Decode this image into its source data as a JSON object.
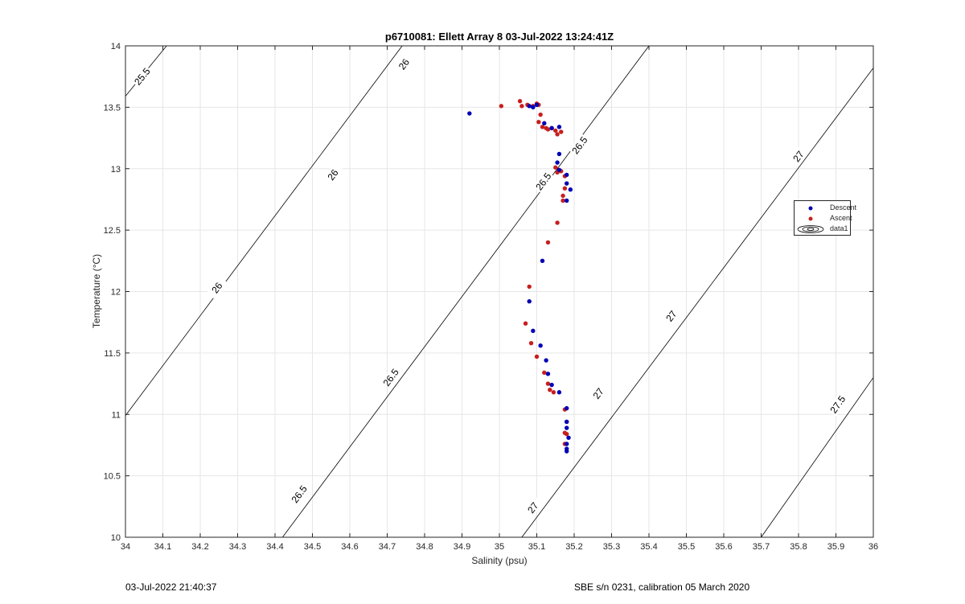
{
  "chart_data": {
    "type": "scatter",
    "title": "p6710081: Ellett Array 8 03-Jul-2022 13:24:41Z",
    "xlabel": "Salinity (psu)",
    "ylabel": "Temperature (°C)",
    "xlim": [
      34,
      36
    ],
    "ylim": [
      10,
      14
    ],
    "x_ticks": [
      "34",
      "34.1",
      "34.2",
      "34.3",
      "34.4",
      "34.5",
      "34.6",
      "34.7",
      "34.8",
      "34.9",
      "35",
      "35.1",
      "35.2",
      "35.3",
      "35.4",
      "35.5",
      "35.6",
      "35.7",
      "35.8",
      "35.9",
      "36"
    ],
    "y_ticks": [
      "10",
      "10.5",
      "11",
      "11.5",
      "12",
      "12.5",
      "13",
      "13.5",
      "14"
    ],
    "grid": true,
    "legend_placement": "right",
    "legend": [
      "Descent",
      "Ascent",
      "data1"
    ],
    "series": [
      {
        "name": "Descent",
        "color": "#0000b4",
        "points": [
          [
            34.92,
            13.45
          ],
          [
            35.08,
            13.51
          ],
          [
            35.09,
            13.5
          ],
          [
            35.1,
            13.52
          ],
          [
            35.12,
            13.37
          ],
          [
            35.14,
            13.33
          ],
          [
            35.16,
            13.34
          ],
          [
            35.16,
            13.12
          ],
          [
            35.155,
            13.05
          ],
          [
            35.16,
            12.99
          ],
          [
            35.18,
            12.95
          ],
          [
            35.18,
            12.88
          ],
          [
            35.19,
            12.83
          ],
          [
            35.18,
            12.74
          ],
          [
            35.115,
            12.25
          ],
          [
            35.08,
            11.92
          ],
          [
            35.09,
            11.68
          ],
          [
            35.11,
            11.56
          ],
          [
            35.125,
            11.44
          ],
          [
            35.13,
            11.33
          ],
          [
            35.14,
            11.24
          ],
          [
            35.16,
            11.18
          ],
          [
            35.18,
            11.05
          ],
          [
            35.18,
            10.94
          ],
          [
            35.18,
            10.89
          ],
          [
            35.185,
            10.81
          ],
          [
            35.18,
            10.76
          ],
          [
            35.18,
            10.72
          ],
          [
            35.18,
            10.7
          ]
        ]
      },
      {
        "name": "Ascent",
        "color": "#c81e1e",
        "points": [
          [
            35.005,
            13.51
          ],
          [
            35.055,
            13.55
          ],
          [
            35.06,
            13.51
          ],
          [
            35.075,
            13.52
          ],
          [
            35.09,
            13.51
          ],
          [
            35.1,
            13.53
          ],
          [
            35.105,
            13.52
          ],
          [
            35.11,
            13.44
          ],
          [
            35.105,
            13.38
          ],
          [
            35.115,
            13.34
          ],
          [
            35.125,
            13.33
          ],
          [
            35.13,
            13.32
          ],
          [
            35.14,
            13.33
          ],
          [
            35.15,
            13.31
          ],
          [
            35.155,
            13.28
          ],
          [
            35.165,
            13.3
          ],
          [
            35.15,
            13.01
          ],
          [
            35.155,
            12.97
          ],
          [
            35.165,
            12.98
          ],
          [
            35.175,
            12.94
          ],
          [
            35.175,
            12.84
          ],
          [
            35.17,
            12.78
          ],
          [
            35.17,
            12.74
          ],
          [
            35.155,
            12.56
          ],
          [
            35.13,
            12.4
          ],
          [
            35.08,
            12.04
          ],
          [
            35.07,
            11.74
          ],
          [
            35.085,
            11.58
          ],
          [
            35.1,
            11.47
          ],
          [
            35.12,
            11.34
          ],
          [
            35.13,
            11.25
          ],
          [
            35.135,
            11.2
          ],
          [
            35.145,
            11.18
          ],
          [
            35.175,
            11.04
          ],
          [
            35.18,
            10.94
          ],
          [
            35.175,
            10.85
          ],
          [
            35.18,
            10.84
          ],
          [
            35.175,
            10.76
          ]
        ]
      }
    ],
    "contours": [
      {
        "level": "25.5",
        "line": [
          [
            34.0,
            13.59
          ],
          [
            34.11,
            14.0
          ]
        ],
        "labels": [
          {
            "text": "25.5",
            "at": [
              34.045,
              13.75
            ]
          }
        ]
      },
      {
        "level": "26",
        "line": [
          [
            34.0,
            10.99
          ],
          [
            34.74,
            14.0
          ]
        ],
        "labels": [
          {
            "text": "26",
            "at": [
              34.745,
              13.85
            ]
          },
          {
            "text": "26",
            "at": [
              34.245,
              12.03
            ]
          },
          {
            "text": "26",
            "at": [
              34.555,
              12.95
            ]
          }
        ]
      },
      {
        "level": "26.5",
        "line": [
          [
            34.42,
            10.0
          ],
          [
            35.4,
            14.0
          ]
        ],
        "labels": [
          {
            "text": "26.5",
            "at": [
              35.118,
              12.895
            ]
          },
          {
            "text": "26.5",
            "at": [
              35.215,
              13.19
            ]
          },
          {
            "text": "26.5",
            "at": [
              34.71,
              11.3
            ]
          },
          {
            "text": "26.5",
            "at": [
              34.465,
              10.35
            ]
          }
        ]
      },
      {
        "level": "27",
        "line": [
          [
            35.06,
            10.0
          ],
          [
            36.0,
            13.82
          ]
        ],
        "labels": [
          {
            "text": "27",
            "at": [
              35.8,
              13.1
            ]
          },
          {
            "text": "27",
            "at": [
              35.46,
              11.8
            ]
          },
          {
            "text": "27",
            "at": [
              35.265,
              11.17
            ]
          },
          {
            "text": "27",
            "at": [
              35.09,
              10.24
            ]
          }
        ]
      },
      {
        "level": "27.5",
        "line": [
          [
            35.7,
            10.0
          ],
          [
            36.0,
            11.3
          ]
        ],
        "labels": [
          {
            "text": "27.5",
            "at": [
              35.905,
              11.08
            ]
          }
        ]
      }
    ]
  },
  "footer": {
    "date": "03-Jul-2022 21:40:37",
    "calibration": "SBE s/n 0231, calibration 05 March 2020"
  },
  "legend": {
    "descent": "Descent",
    "ascent": "Ascent",
    "data1": "data1",
    "descent_color": "#0000b4",
    "ascent_color": "#c81e1e"
  }
}
